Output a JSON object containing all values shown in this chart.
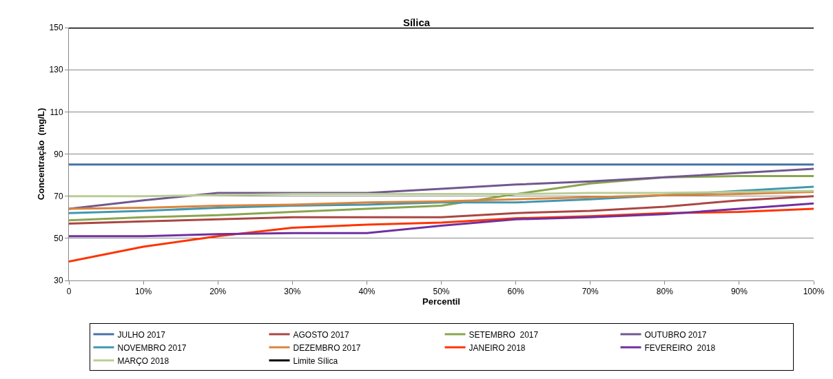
{
  "chart_data": {
    "type": "line",
    "title": "Sílica",
    "xlabel": "Percentil",
    "ylabel": "Concentração  (mg/L)",
    "x": [
      0,
      10,
      20,
      30,
      40,
      50,
      60,
      70,
      80,
      90,
      100
    ],
    "xlim": [
      0,
      100
    ],
    "xticks": [
      0,
      {
        "value": 10,
        "label": "10%"
      },
      {
        "value": 20,
        "label": "20%"
      },
      {
        "value": 30,
        "label": "30%"
      },
      {
        "value": 40,
        "label": "40%"
      },
      {
        "value": 50,
        "label": "50%"
      },
      {
        "value": 60,
        "label": "60%"
      },
      {
        "value": 70,
        "label": "70%"
      },
      {
        "value": 80,
        "label": "80%"
      },
      {
        "value": 90,
        "label": "90%"
      },
      {
        "value": 100,
        "label": "100%"
      }
    ],
    "ylim": [
      30,
      150
    ],
    "yticks": [
      30,
      50,
      70,
      90,
      110,
      130,
      150
    ],
    "grid": "y",
    "legend": "bottom",
    "marker": "none",
    "line_style": "solid",
    "series": [
      {
        "name": "JULHO 2017",
        "color": "#4572a7",
        "values": [
          85,
          85,
          85,
          85,
          85,
          85,
          85,
          85,
          85,
          85,
          85
        ]
      },
      {
        "name": "AGOSTO 2017",
        "color": "#aa4643",
        "values": [
          57,
          58,
          59,
          60,
          60,
          60,
          62,
          63,
          65,
          68,
          70
        ]
      },
      {
        "name": "SETEMBRO  2017",
        "color": "#89a54e",
        "values": [
          58.5,
          60,
          61,
          62.5,
          64,
          65.5,
          71,
          76,
          79,
          79.5,
          79.5
        ]
      },
      {
        "name": "OUTUBRO 2017",
        "color": "#71588f",
        "values": [
          64,
          68,
          71.5,
          71.5,
          71.5,
          73.5,
          75.5,
          77,
          79,
          81,
          83
        ]
      },
      {
        "name": "NOVEMBRO 2017",
        "color": "#4198af",
        "values": [
          62,
          63,
          64.5,
          65.5,
          66,
          67,
          67,
          68.5,
          70.5,
          72.5,
          74.5
        ]
      },
      {
        "name": "DEZEMBRO 2017",
        "color": "#db843d",
        "values": [
          64,
          64.5,
          65.5,
          66,
          67,
          67.5,
          68.5,
          69.5,
          70.5,
          71,
          72
        ]
      },
      {
        "name": "JANEIRO 2018",
        "color": "#ff3300",
        "values": [
          39,
          46,
          51,
          55,
          56.5,
          57.5,
          59.5,
          60.5,
          62,
          62.5,
          64
        ]
      },
      {
        "name": "FEVEREIRO  2018",
        "color": "#7030a0",
        "values": [
          51,
          51,
          52,
          52.5,
          52.5,
          56,
          59,
          60,
          61.5,
          64,
          66.5
        ]
      },
      {
        "name": "MARÇO 2018",
        "color": "#b9cd96",
        "values": [
          70,
          70,
          70.5,
          71,
          71,
          71,
          71,
          71.5,
          71.5,
          72,
          72.5
        ]
      },
      {
        "name": "Limite Sílica",
        "color": "#000000",
        "values": [
          150,
          150,
          150,
          150,
          150,
          150,
          150,
          150,
          150,
          150,
          150
        ]
      }
    ]
  }
}
